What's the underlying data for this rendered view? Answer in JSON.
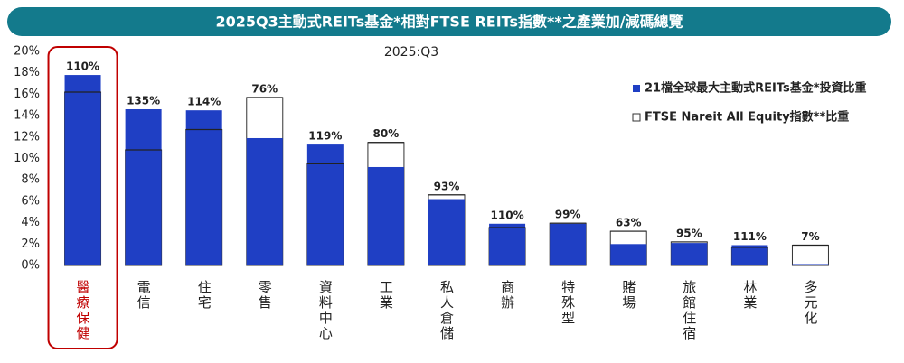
{
  "chart_data": {
    "type": "bar",
    "title": "2025Q3主動式REITs基金*相對FTSE REITs指數**之產業加/減碼總覽",
    "subtitle": "2025:Q3",
    "categories": [
      "醫療保健",
      "電信",
      "住宅",
      "零售",
      "資料中心",
      "工業",
      "私人倉儲",
      "商辦",
      "特殊型",
      "賭場",
      "旅館住宿",
      "林業",
      "多元化"
    ],
    "series": [
      {
        "name": "21檔全球最大主動式REITs基金*投資比重",
        "color": "#1f3fc4",
        "values": [
          17.8,
          14.6,
          14.5,
          11.9,
          11.3,
          9.2,
          6.2,
          3.9,
          3.9,
          2.0,
          2.1,
          1.9,
          0.13
        ]
      },
      {
        "name": "FTSE Nareit All Equity指數**比重",
        "color": "#ffffff",
        "values": [
          16.2,
          10.8,
          12.7,
          15.7,
          9.5,
          11.5,
          6.6,
          3.55,
          3.95,
          3.2,
          2.2,
          1.7,
          1.9
        ]
      }
    ],
    "bar_labels": [
      "110%",
      "135%",
      "114%",
      "76%",
      "119%",
      "80%",
      "93%",
      "110%",
      "99%",
      "63%",
      "95%",
      "111%",
      "7%"
    ],
    "ylim": [
      0,
      20
    ],
    "yticks": [
      {
        "value": 0,
        "label": "0%"
      },
      {
        "value": 2,
        "label": "2%"
      },
      {
        "value": 4,
        "label": "4%"
      },
      {
        "value": 6,
        "label": "6%"
      },
      {
        "value": 8,
        "label": "8%"
      },
      {
        "value": 10,
        "label": "10%"
      },
      {
        "value": 12,
        "label": "12%"
      },
      {
        "value": 14,
        "label": "14%"
      },
      {
        "value": 16,
        "label": "16%"
      },
      {
        "value": 18,
        "label": "18%"
      },
      {
        "value": 20,
        "label": "20%"
      }
    ],
    "highlight_index": 0,
    "highlight_color": "#c00000",
    "title_color": "#137a8c"
  }
}
